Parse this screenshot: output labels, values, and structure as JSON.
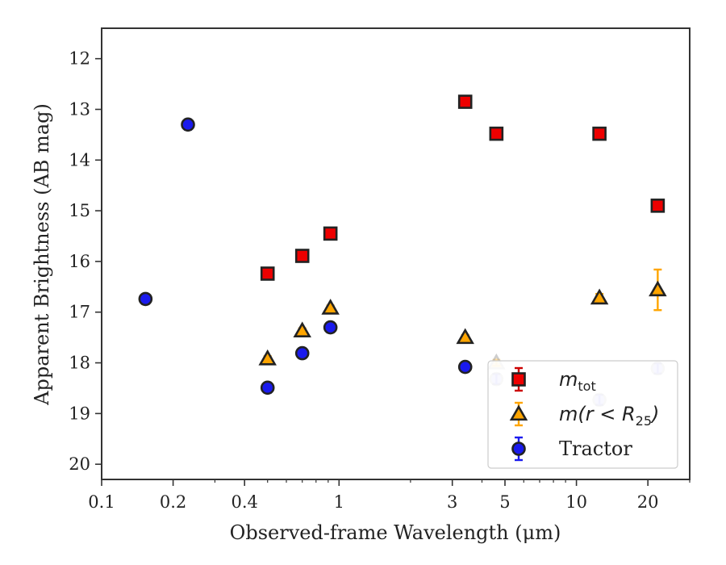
{
  "chart_data": {
    "type": "scatter",
    "xlabel": "Observed-frame Wavelength (μm)",
    "ylabel": "Apparent Brightness (AB mag)",
    "xscale": "log",
    "yinverted": true,
    "xlim": [
      0.1,
      30
    ],
    "ylim": [
      20.3,
      11.4
    ],
    "xticks": [
      {
        "value": 0.1,
        "label": "0.1"
      },
      {
        "value": 0.2,
        "label": "0.2"
      },
      {
        "value": 0.4,
        "label": "0.4"
      },
      {
        "value": 1,
        "label": "1"
      },
      {
        "value": 3,
        "label": "3"
      },
      {
        "value": 5,
        "label": "5"
      },
      {
        "value": 10,
        "label": "10"
      },
      {
        "value": 20,
        "label": "20"
      }
    ],
    "yticks": [
      {
        "value": 12,
        "label": "12"
      },
      {
        "value": 13,
        "label": "13"
      },
      {
        "value": 14,
        "label": "14"
      },
      {
        "value": 15,
        "label": "15"
      },
      {
        "value": 16,
        "label": "16"
      },
      {
        "value": 17,
        "label": "17"
      },
      {
        "value": 18,
        "label": "18"
      },
      {
        "value": 19,
        "label": "19"
      },
      {
        "value": 20,
        "label": "20"
      }
    ],
    "grid": false,
    "legend_position": "lower-right",
    "series": [
      {
        "name": "m_tot",
        "legend_main": "m",
        "legend_sub": "tot",
        "marker": "square",
        "color": "#ee0000",
        "errcolor": "#cc0000",
        "points": [
          {
            "x": 0.5,
            "y": 16.24,
            "err": 0.05
          },
          {
            "x": 0.7,
            "y": 15.89,
            "err": 0.05
          },
          {
            "x": 0.92,
            "y": 15.45,
            "err": 0.05
          },
          {
            "x": 3.4,
            "y": 12.85,
            "err": 0.05
          },
          {
            "x": 4.6,
            "y": 13.48,
            "err": 0.05
          },
          {
            "x": 12.5,
            "y": 13.48,
            "err": 0.05
          },
          {
            "x": 22.0,
            "y": 14.9,
            "err": 0.05
          }
        ]
      },
      {
        "name": "m(r < R25)",
        "legend_main": "m(r < R",
        "legend_sub": "25",
        "legend_close": ")",
        "marker": "triangle",
        "color": "#ffa500",
        "errcolor": "#ffa500",
        "points": [
          {
            "x": 0.5,
            "y": 17.92,
            "err": 0.05
          },
          {
            "x": 0.7,
            "y": 17.37,
            "err": 0.05
          },
          {
            "x": 0.92,
            "y": 16.92,
            "err": 0.05
          },
          {
            "x": 3.4,
            "y": 17.5,
            "err": 0.05
          },
          {
            "x": 4.6,
            "y": 18.0,
            "err": 0.06,
            "faded": true
          },
          {
            "x": 12.5,
            "y": 16.72,
            "err": 0.08
          },
          {
            "x": 22.0,
            "y": 16.56,
            "err": 0.4
          }
        ]
      },
      {
        "name": "Tractor",
        "legend_main": "Tractor",
        "marker": "circle",
        "color": "#1a1aee",
        "errcolor": "#1a1aee",
        "points": [
          {
            "x": 0.153,
            "y": 16.74,
            "err": 0.1
          },
          {
            "x": 0.231,
            "y": 13.3,
            "err": 0.1
          },
          {
            "x": 0.5,
            "y": 18.49,
            "err": 0.1
          },
          {
            "x": 0.7,
            "y": 17.81,
            "err": 0.1
          },
          {
            "x": 0.92,
            "y": 17.3,
            "err": 0.1
          },
          {
            "x": 3.4,
            "y": 18.08,
            "err": 0.1
          },
          {
            "x": 4.6,
            "y": 18.32,
            "err": 0.1,
            "faded": true
          },
          {
            "x": 12.5,
            "y": 18.73,
            "err": 0.1,
            "faded": true
          },
          {
            "x": 22.0,
            "y": 18.11,
            "err": 0.1,
            "faded": true
          }
        ]
      }
    ]
  }
}
